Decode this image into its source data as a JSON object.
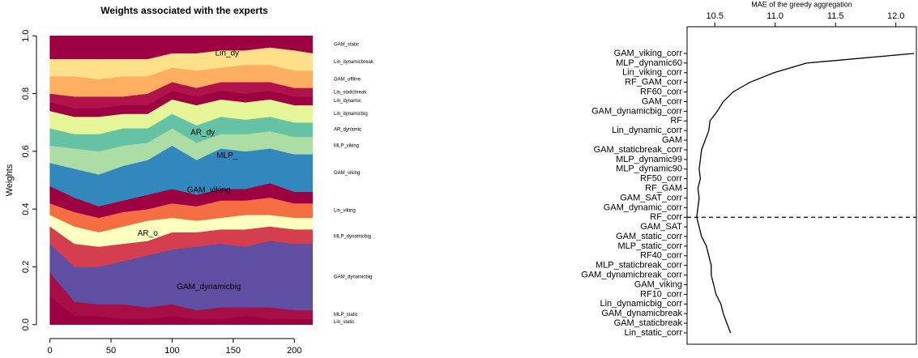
{
  "chart_data": [
    {
      "type": "stacked_area",
      "title": "Weights associated with the experts",
      "ylabel": "Weights",
      "x": [
        0,
        20,
        40,
        60,
        80,
        100,
        120,
        140,
        160,
        180,
        200,
        215
      ],
      "xlim": [
        -11,
        231
      ],
      "xticks": [
        0,
        50,
        100,
        150,
        200
      ],
      "ylim": [
        -0.04,
        1.04
      ],
      "yticks": [
        {
          "value": 0,
          "label": "0.0"
        },
        {
          "value": 0.2,
          "label": "0.2"
        },
        {
          "value": 0.4,
          "label": "0.4"
        },
        {
          "value": 0.6,
          "label": "0.6"
        },
        {
          "value": 0.8,
          "label": "0.8"
        },
        {
          "value": 1,
          "label": "1.0"
        }
      ],
      "legend": "right",
      "series": [
        {
          "name": "Lin_static",
          "color": "#9e0142",
          "values": [
            0.1,
            0.03,
            0.03,
            0.02,
            0.02,
            0.03,
            0.02,
            0.02,
            0.03,
            0.02,
            0.02,
            0.02
          ]
        },
        {
          "name": "MLP_static",
          "color": "#a50f45",
          "values": [
            0.08,
            0.05,
            0.04,
            0.05,
            0.04,
            0.04,
            0.03,
            0.04,
            0.03,
            0.04,
            0.03,
            0.03
          ]
        },
        {
          "name": "GAM_dynamicbig",
          "color": "#5e4fa2",
          "values": [
            0.1,
            0.12,
            0.13,
            0.15,
            0.18,
            0.19,
            0.22,
            0.22,
            0.21,
            0.23,
            0.23,
            0.23
          ]
        },
        {
          "name": "MLP_dynamicbig",
          "color": "#d53e4f",
          "values": [
            0.06,
            0.08,
            0.07,
            0.06,
            0.05,
            0.06,
            0.05,
            0.05,
            0.06,
            0.05,
            0.05,
            0.05
          ]
        },
        {
          "color": "#ffffbf",
          "values": [
            0.04,
            0.06,
            0.05,
            0.06,
            0.07,
            0.05,
            0.04,
            0.04,
            0.05,
            0.04,
            0.04,
            0.04
          ]
        },
        {
          "name": "Lin_viking",
          "color": "#f46d43",
          "values": [
            0.04,
            0.05,
            0.05,
            0.05,
            0.04,
            0.05,
            0.05,
            0.06,
            0.05,
            0.06,
            0.05,
            0.05
          ]
        },
        {
          "color": "#9e0142",
          "values": [
            0.06,
            0.05,
            0.04,
            0.04,
            0.05,
            0.05,
            0.04,
            0.04,
            0.04,
            0.05,
            0.04,
            0.04
          ]
        },
        {
          "name": "GAM_viking",
          "color": "#3288bd",
          "values": [
            0.08,
            0.1,
            0.11,
            0.12,
            0.12,
            0.15,
            0.12,
            0.14,
            0.13,
            0.12,
            0.13,
            0.13
          ]
        },
        {
          "name": "MLP_viking",
          "color": "#abdda4",
          "values": [
            0.06,
            0.07,
            0.08,
            0.07,
            0.06,
            0.06,
            0.06,
            0.05,
            0.06,
            0.06,
            0.06,
            0.06
          ]
        },
        {
          "name": "AR_dynamic",
          "color": "#66c2a5",
          "values": [
            0.06,
            0.05,
            0.06,
            0.06,
            0.05,
            0.05,
            0.06,
            0.06,
            0.05,
            0.05,
            0.05,
            0.05
          ]
        },
        {
          "name": "Lin_dynamicbig",
          "color": "#e6f598",
          "values": [
            0.06,
            0.06,
            0.06,
            0.05,
            0.05,
            0.05,
            0.07,
            0.06,
            0.06,
            0.06,
            0.06,
            0.06
          ]
        },
        {
          "name": "Lin_dynamic",
          "color": "#9e0142",
          "values": [
            0.03,
            0.03,
            0.03,
            0.03,
            0.03,
            0.03,
            0.03,
            0.03,
            0.03,
            0.03,
            0.03,
            0.03
          ]
        },
        {
          "name": "Lin_staticbreak",
          "color": "#b0124a",
          "values": [
            0.03,
            0.04,
            0.04,
            0.03,
            0.04,
            0.03,
            0.03,
            0.03,
            0.04,
            0.03,
            0.03,
            0.03
          ]
        },
        {
          "name": "GAM_offline",
          "color": "#fdae61",
          "values": [
            0.06,
            0.07,
            0.06,
            0.07,
            0.06,
            0.05,
            0.06,
            0.05,
            0.06,
            0.06,
            0.06,
            0.06
          ]
        },
        {
          "name": "Lin_dynamicbreak",
          "color": "#fee08b",
          "values": [
            0.06,
            0.06,
            0.07,
            0.06,
            0.06,
            0.05,
            0.06,
            0.06,
            0.05,
            0.06,
            0.07,
            0.06
          ]
        },
        {
          "name": "GAM_static",
          "color": "#9e0142",
          "values": [
            0.08,
            0.08,
            0.08,
            0.08,
            0.08,
            0.06,
            0.06,
            0.05,
            0.05,
            0.04,
            0.05,
            0.06
          ]
        }
      ],
      "annotations": [
        {
          "text": "Lin_dy",
          "x": 145,
          "y": 0.94
        },
        {
          "text": "AR_dy",
          "x": 125,
          "y": 0.665
        },
        {
          "text": "MLP_",
          "x": 145,
          "y": 0.585
        },
        {
          "text": "GAM_viking",
          "x": 130,
          "y": 0.465
        },
        {
          "text": "AR_o",
          "x": 80,
          "y": 0.315
        },
        {
          "text": "GAM_dynamicbig",
          "x": 130,
          "y": 0.13
        }
      ]
    },
    {
      "type": "line",
      "title": "MAE of the greedy aggregation",
      "orientation": "horizontal",
      "color": "#000000",
      "xlim": [
        10.27,
        12.17
      ],
      "xticks": [
        10.5,
        {
          "value": 11,
          "label": "11.0"
        },
        11.5,
        {
          "value": 12,
          "label": "12.0"
        }
      ],
      "mark_minimum": true,
      "categories": [
        "GAM_viking_corr",
        "MLP_dynamic60",
        "Lin_viking_corr",
        "RF_GAM_corr",
        "RF60_corr",
        "GAM_corr",
        "GAM_dynamicbig_corr",
        "RF",
        "Lin_dynamic_corr",
        "GAM",
        "GAM_staticbreak_corr",
        "MLP_dynamic99",
        "MLP_dynamic90",
        "RF50_corr",
        "RF_GAM",
        "GAM_SAT_corr",
        "GAM_dynamic_corr",
        "RF_corr",
        "GAM_SAT",
        "GAM_static_corr",
        "MLP_static_corr",
        "RF40_corr",
        "MLP_staticbreak_corr",
        "GAM_dynamicbreak_corr",
        "GAM_viking",
        "RF10_corr",
        "Lin_dynamicbig_corr",
        "GAM_dynamicbreak",
        "GAM_staticbreak",
        "Lin_static_corr"
      ],
      "values": [
        12.15,
        11.26,
        10.99,
        10.79,
        10.65,
        10.57,
        10.52,
        10.46,
        10.45,
        10.42,
        10.39,
        10.38,
        10.37,
        10.38,
        10.36,
        10.37,
        10.36,
        10.35,
        10.37,
        10.39,
        10.43,
        10.45,
        10.47,
        10.47,
        10.49,
        10.51,
        10.55,
        10.57,
        10.6,
        10.63
      ]
    }
  ]
}
